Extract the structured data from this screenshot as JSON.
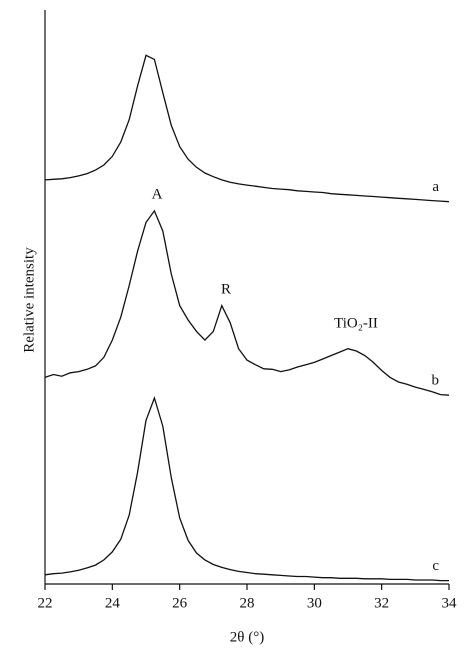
{
  "chart_data": {
    "type": "line",
    "xlabel": "2θ (°)",
    "ylabel": "Relative intensity",
    "x": [
      22,
      22.25,
      22.5,
      22.75,
      23,
      23.25,
      23.5,
      23.75,
      24,
      24.25,
      24.5,
      24.75,
      25,
      25.25,
      25.5,
      25.75,
      26,
      26.25,
      26.5,
      26.75,
      27,
      27.25,
      27.5,
      27.75,
      28,
      28.25,
      28.5,
      28.75,
      29,
      29.25,
      29.5,
      29.75,
      30,
      30.25,
      30.5,
      30.75,
      31,
      31.25,
      31.5,
      31.75,
      32,
      32.25,
      32.5,
      32.75,
      33,
      33.25,
      33.5,
      33.75,
      34
    ],
    "series": [
      {
        "name": "a",
        "color": "#111111",
        "values": [
          70.4,
          70.5,
          70.6,
          70.8,
          71.1,
          71.5,
          72.1,
          73.0,
          74.5,
          77.0,
          80.9,
          86.8,
          92.1,
          91.4,
          85.6,
          79.9,
          76.2,
          74.0,
          72.6,
          71.6,
          70.95,
          70.4,
          70.0,
          69.7,
          69.5,
          69.3,
          69.1,
          68.9,
          68.8,
          68.7,
          68.5,
          68.4,
          68.3,
          68.2,
          68.0,
          67.9,
          67.8,
          67.7,
          67.6,
          67.5,
          67.4,
          67.3,
          67.2,
          67.1,
          67.0,
          66.9,
          66.8,
          66.7,
          66.6
        ]
      },
      {
        "name": "b",
        "color": "#111111",
        "values": [
          36.0,
          36.5,
          36.2,
          36.8,
          37.0,
          37.4,
          38.0,
          39.5,
          42.5,
          46.5,
          52.0,
          58.0,
          63.0,
          65.0,
          61.5,
          54.0,
          48.5,
          46.0,
          44.0,
          42.5,
          44.0,
          48.5,
          45.5,
          41.0,
          39.0,
          38.2,
          37.5,
          37.4,
          37.0,
          37.3,
          37.8,
          38.2,
          38.6,
          39.2,
          39.8,
          40.4,
          41.0,
          40.6,
          39.8,
          38.6,
          37.2,
          36.0,
          35.2,
          34.8,
          34.3,
          33.9,
          33.5,
          33.0,
          32.9
        ]
      },
      {
        "name": "c",
        "color": "#111111",
        "values": [
          1.6,
          1.8,
          1.9,
          2.1,
          2.4,
          2.8,
          3.3,
          4.2,
          5.6,
          7.8,
          12.0,
          19.5,
          28.5,
          32.4,
          27.5,
          18.5,
          11.5,
          7.6,
          5.4,
          4.2,
          3.4,
          2.9,
          2.5,
          2.2,
          2.0,
          1.8,
          1.7,
          1.6,
          1.5,
          1.4,
          1.3,
          1.3,
          1.2,
          1.1,
          1.1,
          1.0,
          1.0,
          1.0,
          0.9,
          0.9,
          0.9,
          0.8,
          0.8,
          0.8,
          0.7,
          0.7,
          0.7,
          0.6,
          0.6
        ]
      }
    ],
    "annotations": [
      "A",
      "R",
      "TiO₂-II"
    ],
    "xlim": [
      22,
      34
    ],
    "xticks": [
      22,
      24,
      26,
      28,
      30,
      32,
      34
    ],
    "ylim": [
      0,
      100
    ]
  }
}
